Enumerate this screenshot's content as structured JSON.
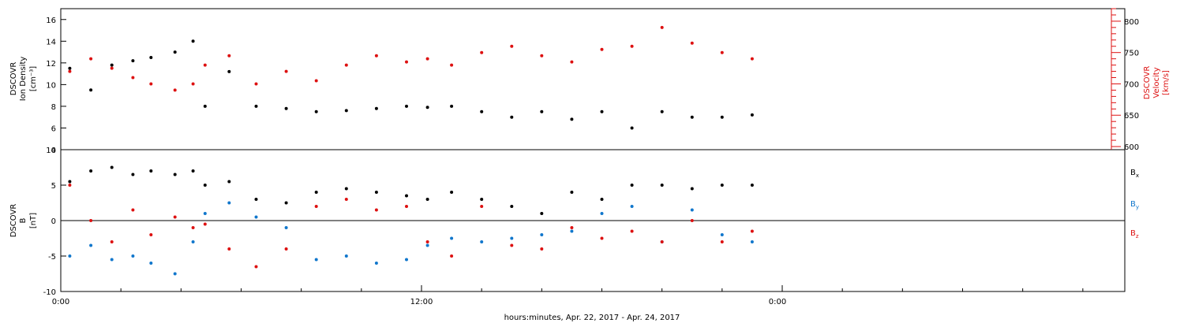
{
  "chart_data": {
    "x_tick_labels": [
      "0:00",
      "12:00",
      "0:00"
    ],
    "xlabel": "hours:minutes, Apr. 22, 2017 - Apr. 24, 2017",
    "panels": [
      {
        "type": "scatter",
        "left_axis": {
          "label_lines": [
            "DSCOVR",
            "Ion Density",
            "[cm⁻³]"
          ],
          "ylim": [
            4,
            17
          ],
          "ticks": [
            4,
            6,
            8,
            10,
            12,
            14,
            16
          ],
          "color": "#000000"
        },
        "right_axis": {
          "label_lines": [
            "DSCOVR",
            "Velocity",
            "[km/s]"
          ],
          "ylim": [
            595,
            820
          ],
          "ticks": [
            600,
            650,
            700,
            750,
            800
          ],
          "color": "#dd1111"
        },
        "series": [
          {
            "axis": "left",
            "color": "#000000",
            "x_hours": [
              0.3,
              1.0,
              1.7,
              2.4,
              3.0,
              3.8,
              4.4,
              4.8,
              5.6,
              6.5,
              7.5,
              8.5,
              9.5,
              10.5,
              11.5,
              12.2,
              13.0,
              14.0,
              15.0,
              16.0,
              17.0,
              18.0,
              19.0,
              20.0,
              21.0,
              22.0,
              23.0
            ],
            "values": [
              11.5,
              9.5,
              11.8,
              12.2,
              12.5,
              13.0,
              14.0,
              8.0,
              11.2,
              8.0,
              7.8,
              7.5,
              7.6,
              7.8,
              8.0,
              7.9,
              8.0,
              7.5,
              7.0,
              7.5,
              6.8,
              7.5,
              6.0,
              7.5,
              7.0,
              7.0,
              7.2
            ]
          },
          {
            "axis": "right",
            "color": "#dd1111",
            "x_hours": [
              0.3,
              1.0,
              1.7,
              2.4,
              3.0,
              3.8,
              4.4,
              4.8,
              5.6,
              6.5,
              7.5,
              8.5,
              9.5,
              10.5,
              11.5,
              12.2,
              13.0,
              14.0,
              15.0,
              16.0,
              17.0,
              18.0,
              19.0,
              20.0,
              21.0,
              22.0,
              23.0
            ],
            "values": [
              720,
              740,
              725,
              710,
              700,
              690,
              700,
              730,
              745,
              700,
              720,
              705,
              730,
              745,
              735,
              740,
              730,
              750,
              760,
              745,
              735,
              755,
              760,
              790,
              765,
              750,
              740
            ]
          }
        ]
      },
      {
        "type": "scatter",
        "left_axis": {
          "label_lines": [
            "DSCOVR",
            "B",
            "[nT]"
          ],
          "ylim": [
            -10,
            10
          ],
          "ticks": [
            -10,
            -5,
            0,
            5,
            10
          ],
          "color": "#000000"
        },
        "zero_line": 0,
        "legend": {
          "placement": "right",
          "entries": [
            {
              "text": "B",
              "sub": "x",
              "color": "#000000"
            },
            {
              "text": "B",
              "sub": "y",
              "color": "#1177cc"
            },
            {
              "text": "B",
              "sub": "z",
              "color": "#dd1111"
            }
          ]
        },
        "series": [
          {
            "color": "#000000",
            "x_hours": [
              0.3,
              1.0,
              1.7,
              2.4,
              3.0,
              3.8,
              4.4,
              4.8,
              5.6,
              6.5,
              7.5,
              8.5,
              9.5,
              10.5,
              11.5,
              12.2,
              13.0,
              14.0,
              15.0,
              16.0,
              17.0,
              18.0,
              19.0,
              20.0,
              21.0,
              22.0,
              23.0
            ],
            "values": [
              5.5,
              7.0,
              7.5,
              6.5,
              7.0,
              6.5,
              7.0,
              5.0,
              5.5,
              3.0,
              2.5,
              4.0,
              4.5,
              4.0,
              3.5,
              3.0,
              4.0,
              3.0,
              2.0,
              1.0,
              4.0,
              3.0,
              5.0,
              5.0,
              4.5,
              5.0,
              5.0
            ]
          },
          {
            "color": "#1177cc",
            "x_hours": [
              0.3,
              1.0,
              1.7,
              2.4,
              3.0,
              3.8,
              4.4,
              4.8,
              5.6,
              6.5,
              7.5,
              8.5,
              9.5,
              10.5,
              11.5,
              12.2,
              13.0,
              14.0,
              15.0,
              16.0,
              17.0,
              18.0,
              19.0,
              20.0,
              21.0,
              22.0,
              23.0
            ],
            "values": [
              -5.0,
              -3.5,
              -5.5,
              -5.0,
              -6.0,
              -7.5,
              -3.0,
              1.0,
              2.5,
              0.5,
              -1.0,
              -5.5,
              -5.0,
              -6.0,
              -5.5,
              -3.5,
              -2.5,
              -3.0,
              -2.5,
              -2.0,
              -1.5,
              1.0,
              2.0,
              -3.0,
              1.5,
              -2.0,
              -3.0
            ]
          },
          {
            "color": "#dd1111",
            "x_hours": [
              0.3,
              1.0,
              1.7,
              2.4,
              3.0,
              3.8,
              4.4,
              4.8,
              5.6,
              6.5,
              7.5,
              8.5,
              9.5,
              10.5,
              11.5,
              12.2,
              13.0,
              14.0,
              15.0,
              16.0,
              17.0,
              18.0,
              19.0,
              20.0,
              21.0,
              22.0,
              23.0
            ],
            "values": [
              5.0,
              0.0,
              -3.0,
              1.5,
              -2.0,
              0.5,
              -1.0,
              -0.5,
              -4.0,
              -6.5,
              -4.0,
              2.0,
              3.0,
              1.5,
              2.0,
              -3.0,
              -5.0,
              2.0,
              -3.5,
              -4.0,
              -1.0,
              -2.5,
              -1.5,
              -3.0,
              0.0,
              -3.0,
              -1.5
            ]
          }
        ]
      }
    ]
  }
}
